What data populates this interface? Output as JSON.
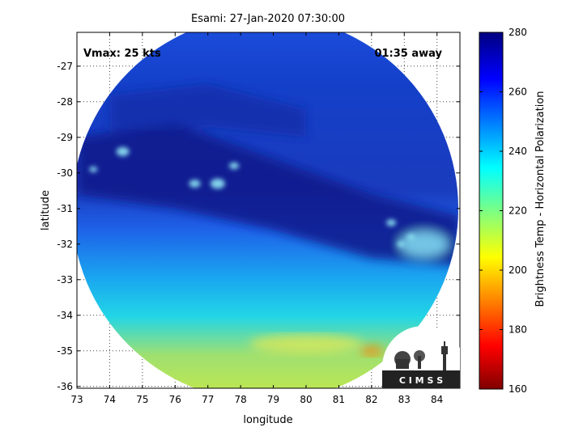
{
  "chart_data": {
    "type": "heatmap",
    "title": "Esami: 27-Jan-2020 07:30:00",
    "xlabel": "longitude",
    "ylabel": "latitude",
    "xlim": [
      73,
      84.7
    ],
    "ylim": [
      -36.05,
      -26.05
    ],
    "x_ticks": [
      "73",
      "74",
      "75",
      "76",
      "77",
      "78",
      "79",
      "80",
      "81",
      "82",
      "83",
      "84"
    ],
    "y_ticks": [
      "-27",
      "-28",
      "-29",
      "-30",
      "-31",
      "-32",
      "-33",
      "-34",
      "-35",
      "-36"
    ],
    "grid": true,
    "annotations": {
      "vmax": "Vmax: 25 kts",
      "time_away": "01:35 away"
    },
    "colorbar": {
      "label": "Brightness Temp - Horizontal Polarization",
      "range": [
        160,
        280
      ],
      "ticks": [
        "280",
        "260",
        "240",
        "220",
        "200",
        "180",
        "160"
      ]
    },
    "swath_center": [
      78.75,
      -31.0
    ],
    "swath_radius_deg": 5.9
  },
  "logo": {
    "text": "C I M S S"
  },
  "colors": {
    "deep_blue": "#0a1f8c",
    "blue": "#1a4fe6",
    "cyan": "#19c8f0",
    "yellow_green": "#bfe85a",
    "orange": "#f08a10"
  }
}
